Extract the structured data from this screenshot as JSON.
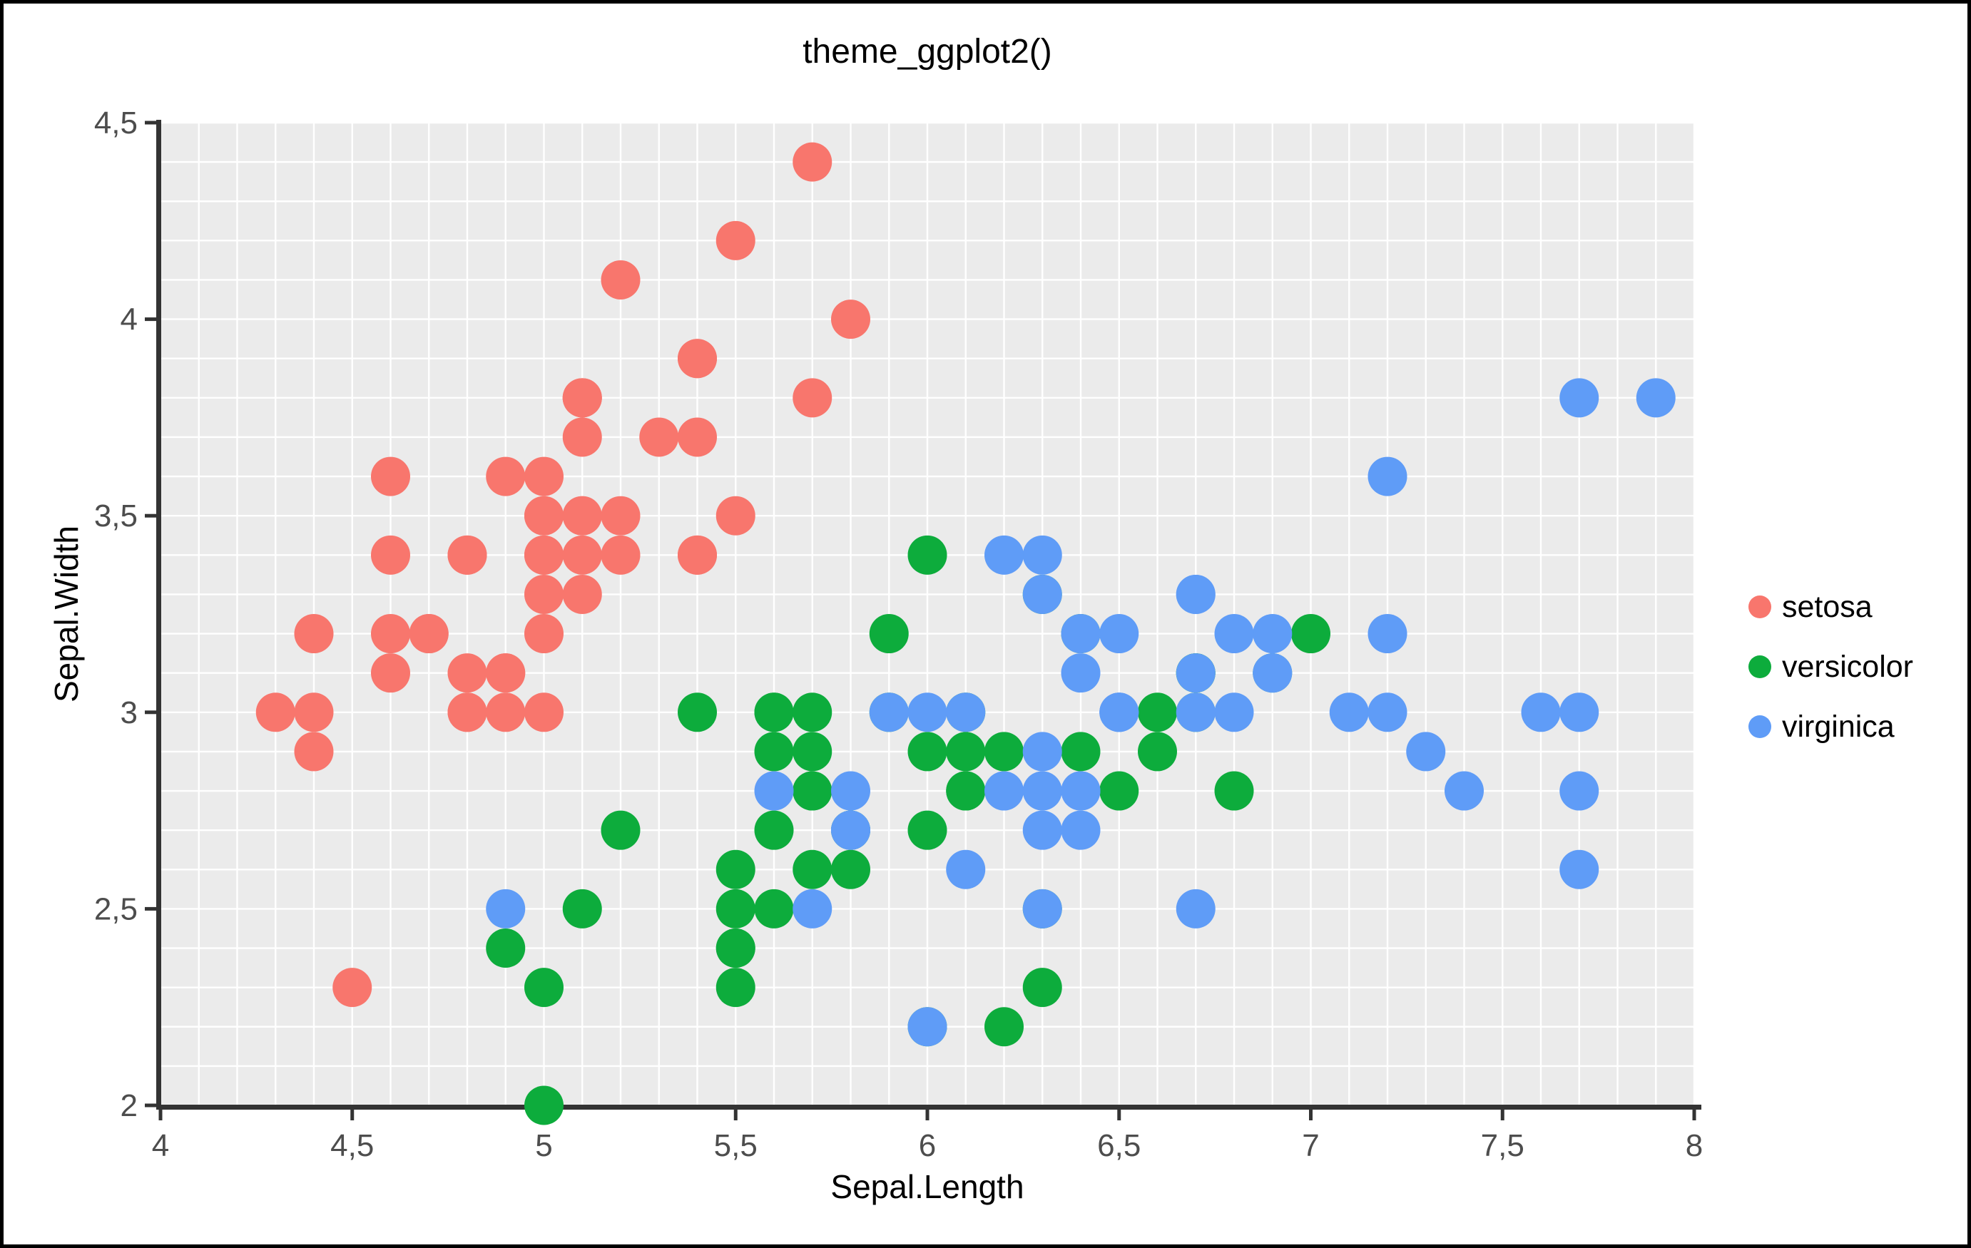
{
  "title": "theme_ggplot2()",
  "style": {
    "panel_bg": "#EBEBEB",
    "grid_color": "#FFFFFF",
    "axis_line_color": "#333333",
    "tick_label_color": "#4D4D4D",
    "text_color": "#000000"
  },
  "chart_data": {
    "type": "scatter",
    "title": "theme_ggplot2()",
    "xlabel": "Sepal.Length",
    "ylabel": "Sepal.Width",
    "xlim": [
      4,
      8
    ],
    "ylim": [
      2,
      4.5
    ],
    "grid": "minor gridlines every 0.1, white on gray panel",
    "minor_step": 0.1,
    "legend_position": "right",
    "x_ticks": [
      {
        "v": 4.0,
        "label": "4"
      },
      {
        "v": 4.5,
        "label": "4,5"
      },
      {
        "v": 5.0,
        "label": "5"
      },
      {
        "v": 5.5,
        "label": "5,5"
      },
      {
        "v": 6.0,
        "label": "6"
      },
      {
        "v": 6.5,
        "label": "6,5"
      },
      {
        "v": 7.0,
        "label": "7"
      },
      {
        "v": 7.5,
        "label": "7,5"
      },
      {
        "v": 8.0,
        "label": "8"
      }
    ],
    "y_ticks": [
      {
        "v": 2.0,
        "label": "2"
      },
      {
        "v": 2.5,
        "label": "2,5"
      },
      {
        "v": 3.0,
        "label": "3"
      },
      {
        "v": 3.5,
        "label": "3,5"
      },
      {
        "v": 4.0,
        "label": "4"
      },
      {
        "v": 4.5,
        "label": "4,5"
      }
    ],
    "series": [
      {
        "name": "setosa",
        "color": "#F8766D",
        "points": [
          [
            5.1,
            3.5
          ],
          [
            4.9,
            3.0
          ],
          [
            4.7,
            3.2
          ],
          [
            4.6,
            3.1
          ],
          [
            5.0,
            3.6
          ],
          [
            5.4,
            3.9
          ],
          [
            4.6,
            3.4
          ],
          [
            5.0,
            3.4
          ],
          [
            4.4,
            2.9
          ],
          [
            4.9,
            3.1
          ],
          [
            5.4,
            3.7
          ],
          [
            4.8,
            3.4
          ],
          [
            4.8,
            3.0
          ],
          [
            4.3,
            3.0
          ],
          [
            5.8,
            4.0
          ],
          [
            5.7,
            4.4
          ],
          [
            5.4,
            3.9
          ],
          [
            5.1,
            3.5
          ],
          [
            5.7,
            3.8
          ],
          [
            5.1,
            3.8
          ],
          [
            5.4,
            3.4
          ],
          [
            5.1,
            3.7
          ],
          [
            4.6,
            3.6
          ],
          [
            5.1,
            3.3
          ],
          [
            4.8,
            3.4
          ],
          [
            5.0,
            3.0
          ],
          [
            5.0,
            3.4
          ],
          [
            5.2,
            3.5
          ],
          [
            5.2,
            3.4
          ],
          [
            4.7,
            3.2
          ],
          [
            4.8,
            3.1
          ],
          [
            5.4,
            3.4
          ],
          [
            5.2,
            4.1
          ],
          [
            5.5,
            4.2
          ],
          [
            4.9,
            3.1
          ],
          [
            5.0,
            3.2
          ],
          [
            5.5,
            3.5
          ],
          [
            4.9,
            3.6
          ],
          [
            4.4,
            3.0
          ],
          [
            5.1,
            3.4
          ],
          [
            5.0,
            3.5
          ],
          [
            4.5,
            2.3
          ],
          [
            4.4,
            3.2
          ],
          [
            5.0,
            3.5
          ],
          [
            5.1,
            3.8
          ],
          [
            4.8,
            3.0
          ],
          [
            5.1,
            3.8
          ],
          [
            4.6,
            3.2
          ],
          [
            5.3,
            3.7
          ],
          [
            5.0,
            3.3
          ]
        ]
      },
      {
        "name": "versicolor",
        "color": "#0DAC3C",
        "points": [
          [
            7.0,
            3.2
          ],
          [
            6.4,
            3.2
          ],
          [
            6.9,
            3.1
          ],
          [
            5.5,
            2.3
          ],
          [
            6.5,
            2.8
          ],
          [
            5.7,
            2.8
          ],
          [
            6.3,
            3.3
          ],
          [
            4.9,
            2.4
          ],
          [
            6.6,
            2.9
          ],
          [
            5.2,
            2.7
          ],
          [
            5.0,
            2.0
          ],
          [
            5.9,
            3.0
          ],
          [
            6.0,
            2.2
          ],
          [
            6.1,
            2.9
          ],
          [
            5.6,
            2.9
          ],
          [
            6.7,
            3.1
          ],
          [
            5.6,
            3.0
          ],
          [
            5.8,
            2.7
          ],
          [
            6.2,
            2.2
          ],
          [
            5.6,
            2.5
          ],
          [
            5.9,
            3.2
          ],
          [
            6.1,
            2.8
          ],
          [
            6.3,
            2.5
          ],
          [
            6.1,
            2.8
          ],
          [
            6.4,
            2.9
          ],
          [
            6.6,
            3.0
          ],
          [
            6.8,
            2.8
          ],
          [
            6.7,
            3.0
          ],
          [
            6.0,
            2.9
          ],
          [
            5.7,
            2.6
          ],
          [
            5.5,
            2.4
          ],
          [
            5.5,
            2.4
          ],
          [
            5.8,
            2.7
          ],
          [
            6.0,
            2.7
          ],
          [
            5.4,
            3.0
          ],
          [
            6.0,
            3.4
          ],
          [
            6.7,
            3.1
          ],
          [
            6.3,
            2.3
          ],
          [
            5.6,
            3.0
          ],
          [
            5.5,
            2.5
          ],
          [
            5.5,
            2.6
          ],
          [
            6.1,
            3.0
          ],
          [
            5.8,
            2.6
          ],
          [
            5.0,
            2.3
          ],
          [
            5.6,
            2.7
          ],
          [
            5.7,
            3.0
          ],
          [
            5.7,
            2.9
          ],
          [
            6.2,
            2.9
          ],
          [
            5.1,
            2.5
          ],
          [
            5.7,
            2.8
          ]
        ]
      },
      {
        "name": "virginica",
        "color": "#5F9CF7",
        "points": [
          [
            6.3,
            3.3
          ],
          [
            5.8,
            2.7
          ],
          [
            7.1,
            3.0
          ],
          [
            6.3,
            2.9
          ],
          [
            6.5,
            3.0
          ],
          [
            7.6,
            3.0
          ],
          [
            4.9,
            2.5
          ],
          [
            7.3,
            2.9
          ],
          [
            6.7,
            2.5
          ],
          [
            7.2,
            3.6
          ],
          [
            6.5,
            3.2
          ],
          [
            6.4,
            2.7
          ],
          [
            6.8,
            3.0
          ],
          [
            5.7,
            2.5
          ],
          [
            5.8,
            2.8
          ],
          [
            6.4,
            3.2
          ],
          [
            6.5,
            3.0
          ],
          [
            7.7,
            3.8
          ],
          [
            7.7,
            2.6
          ],
          [
            6.0,
            2.2
          ],
          [
            6.9,
            3.2
          ],
          [
            5.6,
            2.8
          ],
          [
            7.7,
            2.8
          ],
          [
            6.3,
            2.7
          ],
          [
            6.7,
            3.3
          ],
          [
            7.2,
            3.2
          ],
          [
            6.2,
            2.8
          ],
          [
            6.1,
            3.0
          ],
          [
            6.4,
            2.8
          ],
          [
            7.2,
            3.0
          ],
          [
            7.4,
            2.8
          ],
          [
            7.9,
            3.8
          ],
          [
            6.4,
            2.8
          ],
          [
            6.3,
            2.8
          ],
          [
            6.1,
            2.6
          ],
          [
            7.7,
            3.0
          ],
          [
            6.3,
            3.4
          ],
          [
            6.4,
            3.1
          ],
          [
            6.0,
            3.0
          ],
          [
            6.9,
            3.1
          ],
          [
            6.7,
            3.1
          ],
          [
            6.9,
            3.1
          ],
          [
            5.8,
            2.7
          ],
          [
            6.8,
            3.2
          ],
          [
            6.7,
            3.3
          ],
          [
            6.7,
            3.0
          ],
          [
            6.3,
            2.5
          ],
          [
            6.5,
            3.0
          ],
          [
            6.2,
            3.4
          ],
          [
            5.9,
            3.0
          ]
        ]
      }
    ]
  },
  "legend": {
    "items": [
      {
        "label": "setosa"
      },
      {
        "label": "versicolor"
      },
      {
        "label": "virginica"
      }
    ]
  }
}
